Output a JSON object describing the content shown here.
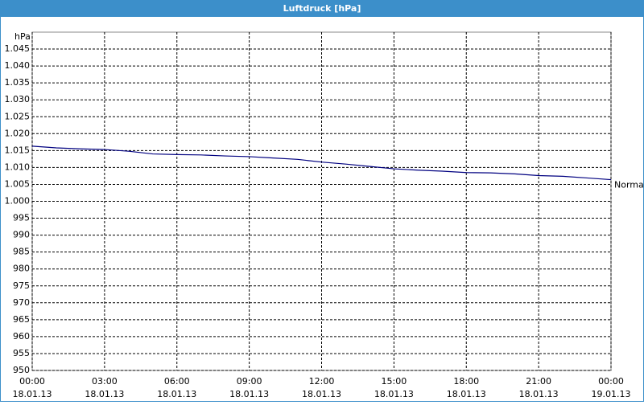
{
  "chart_data": {
    "type": "line",
    "title": "Luftdruck [hPa]",
    "y_label": "hPa",
    "x": [
      0,
      1,
      2,
      3,
      4,
      5,
      6,
      7,
      8,
      9,
      10,
      11,
      12,
      13,
      14,
      15,
      16,
      17,
      18,
      19,
      20,
      21,
      22,
      23,
      24
    ],
    "series": [
      {
        "name": "Normal",
        "color": "#000080",
        "values": [
          1016.3,
          1015.8,
          1015.5,
          1015.3,
          1014.8,
          1014.0,
          1013.8,
          1013.7,
          1013.4,
          1013.2,
          1012.8,
          1012.4,
          1011.6,
          1011.0,
          1010.3,
          1009.6,
          1009.2,
          1008.9,
          1008.5,
          1008.4,
          1008.1,
          1007.6,
          1007.4,
          1006.9,
          1006.4
        ]
      }
    ],
    "xlim": [
      0,
      24
    ],
    "xticks": [
      {
        "value": 0,
        "label": "00:00\n18.01.13"
      },
      {
        "value": 3,
        "label": "03:00\n18.01.13"
      },
      {
        "value": 6,
        "label": "06:00\n18.01.13"
      },
      {
        "value": 9,
        "label": "09:00\n18.01.13"
      },
      {
        "value": 12,
        "label": "12:00\n18.01.13"
      },
      {
        "value": 15,
        "label": "15:00\n18.01.13"
      },
      {
        "value": 18,
        "label": "18:00\n18.01.13"
      },
      {
        "value": 21,
        "label": "21:00\n18.01.13"
      },
      {
        "value": 24,
        "label": "00:00\n19.01.13"
      }
    ],
    "ylim": [
      950,
      1050
    ],
    "yticks": [
      950,
      955,
      960,
      965,
      970,
      975,
      980,
      985,
      990,
      995,
      {
        "value": 1000,
        "label": "1.000"
      },
      {
        "value": 1005,
        "label": "1.005"
      },
      {
        "value": 1010,
        "label": "1.010"
      },
      {
        "value": 1015,
        "label": "1.015"
      },
      {
        "value": 1020,
        "label": "1.020"
      },
      {
        "value": 1025,
        "label": "1.025"
      },
      {
        "value": 1030,
        "label": "1.030"
      },
      {
        "value": 1035,
        "label": "1.035"
      },
      {
        "value": 1040,
        "label": "1.040"
      },
      {
        "value": 1045,
        "label": "1.045"
      }
    ],
    "grid": true
  }
}
